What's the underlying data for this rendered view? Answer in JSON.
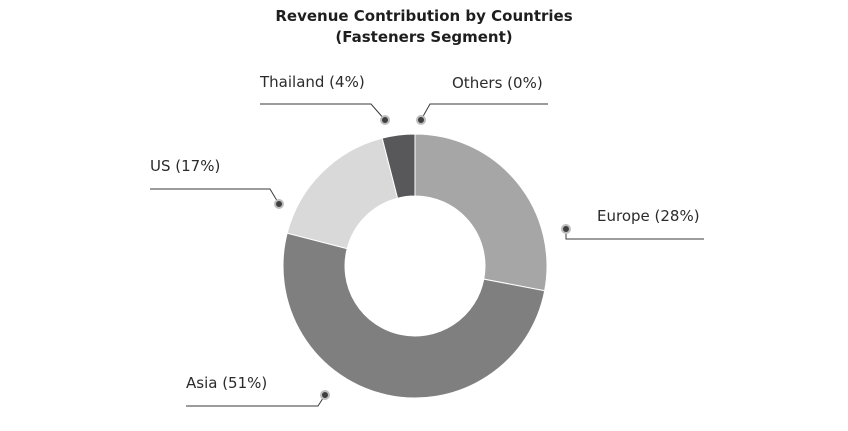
{
  "chart_data": {
    "type": "pie",
    "style": "donut",
    "title_lines": [
      "Revenue Contribution by Countries",
      "(Fasteners Segment)"
    ],
    "slices": [
      {
        "name": "Europe",
        "label": "Europe (28%)",
        "value": 28,
        "color": "#a6a6a6"
      },
      {
        "name": "Asia",
        "label": "Asia (51%)",
        "value": 51,
        "color": "#7f7f7f"
      },
      {
        "name": "US",
        "label": "US (17%)",
        "value": 17,
        "color": "#d9d9d9"
      },
      {
        "name": "Thailand",
        "label": "Thailand (4%)",
        "value": 4,
        "color": "#58585a"
      },
      {
        "name": "Others",
        "label": "Others (0%)",
        "value": 0,
        "color": "#3f3f3f"
      }
    ]
  }
}
